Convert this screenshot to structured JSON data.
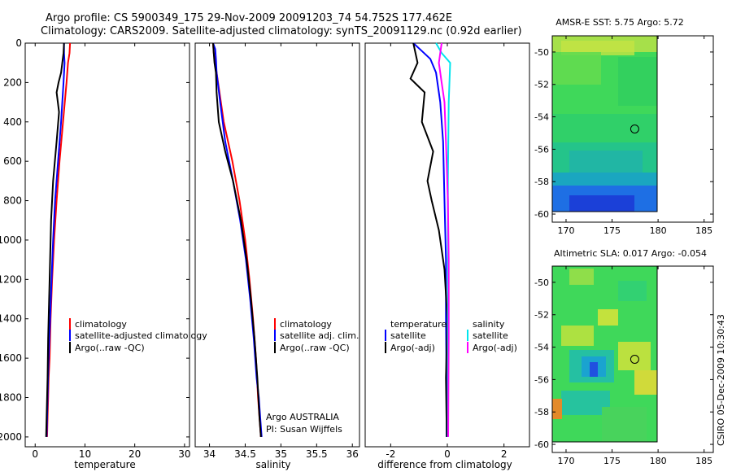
{
  "header": {
    "line1": "Argo profile: CS 5900349_175 29-Nov-2009 20091203_74 54.752S 177.462E",
    "line2": "Climatology: CARS2009. Satellite-adjusted climatology: synTS_20091129.nc (0.92d earlier)"
  },
  "side_label": "CSIRO 05-Dec-2009 10:30:43",
  "colors": {
    "climatology": "#ff0000",
    "satellite": "#0000ff",
    "argo": "#000000",
    "sat_diff": "#00e5ee",
    "argo_adj": "#ff00ff"
  },
  "chart_data": [
    {
      "type": "line",
      "xlabel": "temperature",
      "ylabel": "",
      "xlim": [
        -2,
        31
      ],
      "ylim": [
        2050,
        0
      ],
      "xticks": [
        0,
        10,
        20,
        30
      ],
      "yticks": [
        0,
        200,
        400,
        600,
        800,
        1000,
        1200,
        1400,
        1600,
        1800,
        2000
      ],
      "legend": [
        "climatology",
        "satellite-adjusted climatology",
        "Argo(..raw -QC)"
      ],
      "series": [
        {
          "name": "climatology",
          "color": "#ff0000",
          "x": [
            7.0,
            6.9,
            6.6,
            6.3,
            5.6,
            4.9,
            4.3,
            3.8,
            3.4,
            3.1,
            2.9,
            2.7,
            2.6,
            2.5,
            2.4
          ],
          "y": [
            0,
            50,
            100,
            200,
            400,
            600,
            800,
            1000,
            1200,
            1400,
            1600,
            1700,
            1800,
            1900,
            2000
          ]
        },
        {
          "name": "satellite-adjusted climatology",
          "color": "#0000ff",
          "x": [
            5.8,
            5.8,
            5.9,
            5.7,
            5.2,
            4.6,
            4.0,
            3.6,
            3.3,
            3.0,
            2.7,
            2.5,
            2.4,
            2.3
          ],
          "y": [
            0,
            50,
            100,
            200,
            400,
            600,
            800,
            1000,
            1200,
            1400,
            1600,
            1800,
            1900,
            2000
          ]
        },
        {
          "name": "Argo(..raw -QC)",
          "color": "#000000",
          "x": [
            5.8,
            5.7,
            5.2,
            4.7,
            4.3,
            4.8,
            4.3,
            3.6,
            3.2,
            3.0,
            2.8,
            2.6,
            2.5,
            2.3,
            2.2
          ],
          "y": [
            0,
            50,
            150,
            200,
            250,
            350,
            500,
            700,
            900,
            1100,
            1300,
            1500,
            1700,
            1900,
            2000
          ]
        }
      ]
    },
    {
      "type": "line",
      "xlabel": "salinity",
      "ylabel": "",
      "xlim": [
        33.8,
        36.1
      ],
      "ylim": [
        2050,
        0
      ],
      "xticks": [
        34,
        34.5,
        35,
        35.5,
        36
      ],
      "yticks": [],
      "legend": [
        "climatology",
        "satellite adj. clim.",
        "Argo(..raw -QC)"
      ],
      "footer": [
        "Argo AUSTRALIA",
        "PI: Susan Wijffels"
      ],
      "series": [
        {
          "name": "climatology",
          "color": "#ff0000",
          "x": [
            34.05,
            34.06,
            34.08,
            34.12,
            34.2,
            34.32,
            34.42,
            34.5,
            34.56,
            34.61,
            34.65,
            34.68,
            34.7,
            34.72
          ],
          "y": [
            0,
            50,
            100,
            200,
            400,
            600,
            800,
            1000,
            1200,
            1400,
            1600,
            1800,
            1900,
            2000
          ]
        },
        {
          "name": "satellite adj. clim.",
          "color": "#0000ff",
          "x": [
            34.05,
            34.08,
            34.09,
            34.1,
            34.15,
            34.22,
            34.33,
            34.43,
            34.51,
            34.57,
            34.62,
            34.66,
            34.69,
            34.71,
            34.73
          ],
          "y": [
            0,
            30,
            80,
            150,
            300,
            500,
            700,
            900,
            1100,
            1300,
            1500,
            1700,
            1800,
            1900,
            2000
          ]
        },
        {
          "name": "Argo(..raw -QC)",
          "color": "#000000",
          "x": [
            34.05,
            34.06,
            34.07,
            34.09,
            34.1,
            34.13,
            34.22,
            34.33,
            34.44,
            34.52,
            34.58,
            34.63,
            34.67,
            34.7,
            34.72
          ],
          "y": [
            0,
            50,
            100,
            150,
            250,
            400,
            550,
            700,
            900,
            1100,
            1300,
            1500,
            1700,
            1900,
            2000
          ]
        }
      ]
    },
    {
      "type": "line",
      "xlabel": "difference from climatology",
      "ylabel": "",
      "xlim": [
        -2.9,
        2.9
      ],
      "ylim": [
        2050,
        0
      ],
      "xticks": [
        -2,
        0,
        2
      ],
      "yticks": [],
      "legend_groups": [
        {
          "title": "temperature",
          "items": [
            "satellite",
            "Argo(-adj)"
          ]
        },
        {
          "title": "salinity",
          "items": [
            "satellite",
            "Argo(-adj)"
          ]
        }
      ],
      "series": [
        {
          "name": "satellite",
          "color": "#0000ff",
          "x": [
            -1.2,
            -0.9,
            -0.6,
            -0.4,
            -0.25,
            -0.15,
            -0.1,
            -0.05,
            -0.05,
            -0.03,
            -0.03
          ],
          "y": [
            0,
            40,
            80,
            150,
            300,
            500,
            800,
            1100,
            1400,
            1700,
            2000
          ]
        },
        {
          "name": "Argo(-adj)",
          "color": "#000000",
          "x": [
            -1.2,
            -1.05,
            -1.3,
            -0.8,
            -0.9,
            -0.5,
            -0.7,
            -0.55,
            -0.3,
            -0.1,
            0.0,
            -0.05,
            -0.02
          ],
          "y": [
            0,
            100,
            180,
            250,
            400,
            550,
            700,
            800,
            950,
            1150,
            1400,
            1700,
            2000
          ]
        },
        {
          "name": "satellite",
          "color": "#00e5ee",
          "x": [
            -0.4,
            -0.2,
            0.1,
            0.05,
            0.02,
            0.02,
            0.02
          ],
          "y": [
            0,
            50,
            100,
            300,
            700,
            1300,
            2000
          ]
        },
        {
          "name": "Argo(-adj)",
          "color": "#ff00ff",
          "x": [
            -0.2,
            -0.3,
            -0.2,
            -0.1,
            -0.05,
            0.02,
            0.05,
            0.05,
            0.03
          ],
          "y": [
            0,
            100,
            200,
            300,
            500,
            800,
            1100,
            1500,
            2000
          ]
        }
      ]
    },
    {
      "type": "heatmap",
      "title": "AMSR-E SST: 5.75 Argo: 5.72",
      "xlim": [
        168.5,
        186
      ],
      "ylim": [
        -60.5,
        -49
      ],
      "xticks": [
        170,
        175,
        180,
        185
      ],
      "yticks": [
        -50,
        -52,
        -54,
        -56,
        -58,
        -60
      ],
      "marker": {
        "lon": 177.462,
        "lat": -54.752
      }
    },
    {
      "type": "heatmap",
      "title": "Altimetric SLA: 0.017 Argo: -0.054",
      "xlim": [
        168.5,
        186
      ],
      "ylim": [
        -60.5,
        -49
      ],
      "xticks": [
        170,
        175,
        180,
        185
      ],
      "yticks": [
        -50,
        -52,
        -54,
        -56,
        -58,
        -60
      ],
      "marker": {
        "lon": 177.462,
        "lat": -54.752
      }
    }
  ]
}
